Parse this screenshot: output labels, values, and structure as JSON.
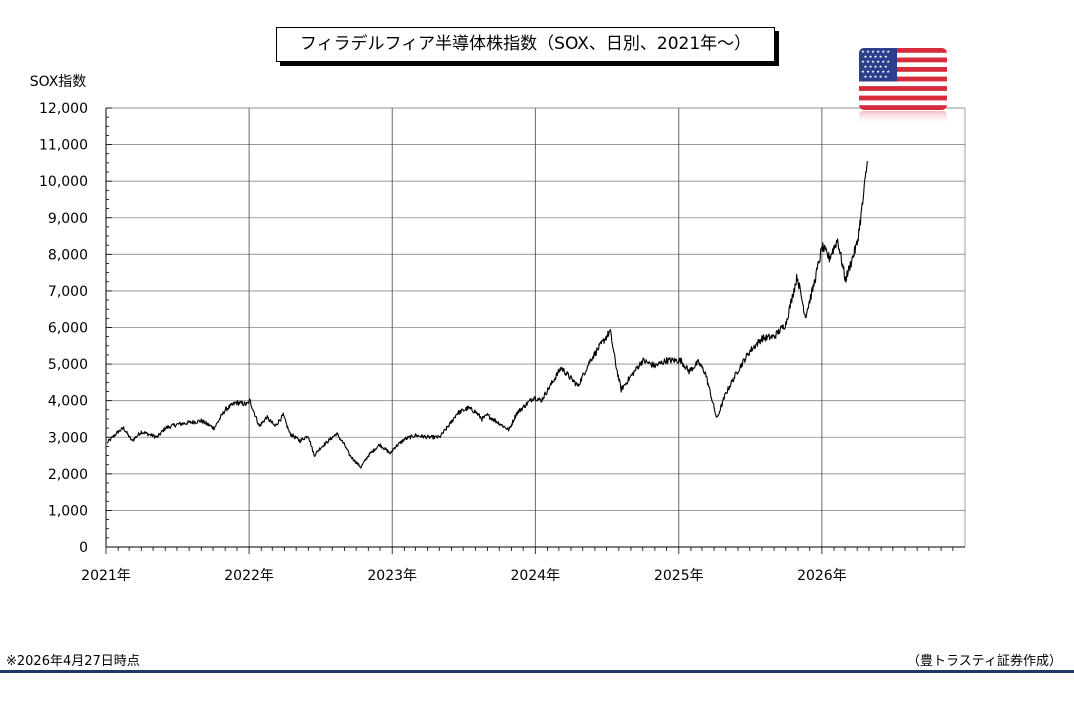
{
  "chart_data": {
    "type": "line",
    "title": "フィラデルフィア半導体株指数（SOX、日別、2021年～）",
    "ylabel": "SOX指数",
    "xlabel": "",
    "ylim": [
      0,
      12000
    ],
    "yticks": [
      "0",
      "1,000",
      "2,000",
      "3,000",
      "4,000",
      "5,000",
      "6,000",
      "7,000",
      "8,000",
      "9,000",
      "10,000",
      "11,000",
      "12,000"
    ],
    "xticks": [
      "2021年",
      "2022年",
      "2023年",
      "2024年",
      "2025年",
      "2026年"
    ],
    "xlim": [
      "2021-01-01",
      "2027-01-01"
    ],
    "grid": true,
    "series": [
      {
        "x": [
          "2021-01-04",
          "2021-02-01",
          "2021-02-15",
          "2021-03-08",
          "2021-04-01",
          "2021-05-12",
          "2021-06-01",
          "2021-07-01",
          "2021-08-01",
          "2021-09-01",
          "2021-10-04",
          "2021-11-01",
          "2021-11-29",
          "2021-12-27",
          "2022-01-03",
          "2022-01-27",
          "2022-02-15",
          "2022-03-08",
          "2022-03-29",
          "2022-04-15",
          "2022-05-11",
          "2022-06-01",
          "2022-06-16",
          "2022-07-01",
          "2022-08-12",
          "2022-09-01",
          "2022-09-15",
          "2022-10-13",
          "2022-11-01",
          "2022-11-30",
          "2022-12-28",
          "2023-01-05",
          "2023-02-02",
          "2023-03-01",
          "2023-04-03",
          "2023-05-02",
          "2023-05-31",
          "2023-06-15",
          "2023-07-14",
          "2023-08-01",
          "2023-08-18",
          "2023-09-01",
          "2023-10-26",
          "2023-11-14",
          "2023-12-29",
          "2024-01-16",
          "2024-03-07",
          "2024-04-19",
          "2024-05-20",
          "2024-07-10",
          "2024-07-25",
          "2024-08-07",
          "2024-09-03",
          "2024-10-01",
          "2024-11-01",
          "2024-12-01",
          "2025-01-06",
          "2025-01-27",
          "2025-02-20",
          "2025-03-10",
          "2025-04-08",
          "2025-05-01",
          "2025-06-02",
          "2025-07-01",
          "2025-08-01",
          "2025-09-01",
          "2025-10-01",
          "2025-10-30",
          "2025-11-20",
          "2025-12-10",
          "2026-01-02",
          "2026-01-20",
          "2026-02-10",
          "2026-03-02",
          "2026-03-20",
          "2026-04-01",
          "2026-04-15",
          "2026-04-27"
        ],
        "values": [
          2850,
          3150,
          3250,
          2900,
          3150,
          3000,
          3250,
          3350,
          3400,
          3450,
          3250,
          3750,
          3950,
          3900,
          4000,
          3300,
          3550,
          3300,
          3600,
          3100,
          2900,
          3050,
          2500,
          2700,
          3100,
          2800,
          2500,
          2180,
          2500,
          2800,
          2550,
          2700,
          2950,
          3050,
          3000,
          3000,
          3400,
          3650,
          3800,
          3700,
          3500,
          3600,
          3200,
          3650,
          4100,
          4000,
          4900,
          4400,
          5100,
          5900,
          4950,
          4300,
          4700,
          5100,
          4950,
          5100,
          5100,
          4800,
          5050,
          4750,
          3500,
          4200,
          4850,
          5350,
          5700,
          5750,
          6100,
          7400,
          6300,
          7100,
          8200,
          7900,
          8400,
          7300,
          7900,
          8300,
          9400,
          10550
        ]
      }
    ]
  },
  "footnote_left": "※2026年4月27日時点",
  "footnote_right": "（豊トラスティ証券作成）",
  "flag_icon": "us-flag-icon",
  "colors": {
    "line": "#000000",
    "grid": "#888888",
    "footer_rule": "#1f3864"
  }
}
